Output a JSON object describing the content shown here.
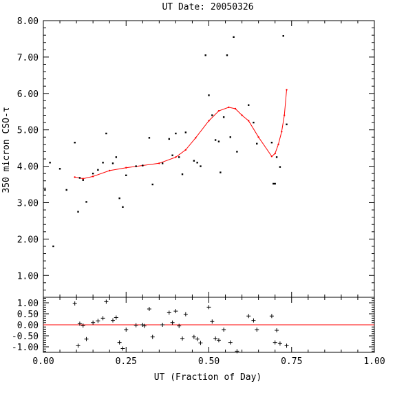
{
  "chart_data": {
    "type": "scatter",
    "title": "UT Date: 20050326",
    "xlabel": "UT (Fraction of Day)",
    "ylabel": "350 micron CSO-τ",
    "xlim": [
      0.0,
      1.0
    ],
    "ylim": [
      0.4,
      8.0
    ],
    "residual_ylim": [
      -1.25,
      1.25
    ],
    "x_ticks": [
      "0.00",
      "0.25",
      "0.50",
      "0.75",
      "1.00"
    ],
    "y_ticks": [
      "1.00",
      "2.00",
      "3.00",
      "4.00",
      "5.00",
      "6.00",
      "7.00",
      "8.00"
    ],
    "residual_y_ticks": [
      "1.00",
      "0.50",
      "0.00",
      "-0.50",
      "-1.00"
    ],
    "grid": false,
    "fit_color": "#ff0000",
    "point_color": "#000000",
    "points": [
      {
        "x": 0.005,
        "y": 3.35
      },
      {
        "x": 0.02,
        "y": 4.1
      },
      {
        "x": 0.03,
        "y": 1.8
      },
      {
        "x": 0.05,
        "y": 3.93
      },
      {
        "x": 0.07,
        "y": 3.35
      },
      {
        "x": 0.095,
        "y": 4.65
      },
      {
        "x": 0.105,
        "y": 2.75
      },
      {
        "x": 0.11,
        "y": 3.68
      },
      {
        "x": 0.12,
        "y": 3.62
      },
      {
        "x": 0.13,
        "y": 3.02
      },
      {
        "x": 0.15,
        "y": 3.8
      },
      {
        "x": 0.165,
        "y": 3.9
      },
      {
        "x": 0.18,
        "y": 4.1
      },
      {
        "x": 0.19,
        "y": 4.9
      },
      {
        "x": 0.21,
        "y": 4.08
      },
      {
        "x": 0.22,
        "y": 4.25
      },
      {
        "x": 0.23,
        "y": 3.12
      },
      {
        "x": 0.24,
        "y": 2.88
      },
      {
        "x": 0.25,
        "y": 3.75
      },
      {
        "x": 0.28,
        "y": 4.0
      },
      {
        "x": 0.3,
        "y": 4.02
      },
      {
        "x": 0.32,
        "y": 4.78
      },
      {
        "x": 0.33,
        "y": 3.5
      },
      {
        "x": 0.36,
        "y": 4.08
      },
      {
        "x": 0.38,
        "y": 4.75
      },
      {
        "x": 0.39,
        "y": 4.3
      },
      {
        "x": 0.4,
        "y": 4.9
      },
      {
        "x": 0.41,
        "y": 4.25
      },
      {
        "x": 0.42,
        "y": 3.78
      },
      {
        "x": 0.43,
        "y": 4.93
      },
      {
        "x": 0.455,
        "y": 4.15
      },
      {
        "x": 0.465,
        "y": 4.1
      },
      {
        "x": 0.475,
        "y": 4.0
      },
      {
        "x": 0.49,
        "y": 7.05
      },
      {
        "x": 0.5,
        "y": 5.95
      },
      {
        "x": 0.51,
        "y": 5.4
      },
      {
        "x": 0.52,
        "y": 4.72
      },
      {
        "x": 0.53,
        "y": 4.68
      },
      {
        "x": 0.535,
        "y": 3.83
      },
      {
        "x": 0.545,
        "y": 5.35
      },
      {
        "x": 0.555,
        "y": 7.05
      },
      {
        "x": 0.565,
        "y": 4.8
      },
      {
        "x": 0.575,
        "y": 7.55
      },
      {
        "x": 0.585,
        "y": 4.4
      },
      {
        "x": 0.62,
        "y": 5.68
      },
      {
        "x": 0.635,
        "y": 5.2
      },
      {
        "x": 0.645,
        "y": 4.62
      },
      {
        "x": 0.69,
        "y": 4.65
      },
      {
        "x": 0.695,
        "y": 3.52
      },
      {
        "x": 0.7,
        "y": 3.52
      },
      {
        "x": 0.705,
        "y": 4.25
      },
      {
        "x": 0.715,
        "y": 3.98
      },
      {
        "x": 0.725,
        "y": 7.58
      },
      {
        "x": 0.735,
        "y": 5.15
      }
    ],
    "fit": [
      {
        "x": 0.095,
        "y": 3.7
      },
      {
        "x": 0.12,
        "y": 3.66
      },
      {
        "x": 0.15,
        "y": 3.72
      },
      {
        "x": 0.2,
        "y": 3.88
      },
      {
        "x": 0.25,
        "y": 3.96
      },
      {
        "x": 0.3,
        "y": 4.02
      },
      {
        "x": 0.35,
        "y": 4.08
      },
      {
        "x": 0.4,
        "y": 4.25
      },
      {
        "x": 0.43,
        "y": 4.45
      },
      {
        "x": 0.46,
        "y": 4.78
      },
      {
        "x": 0.5,
        "y": 5.25
      },
      {
        "x": 0.53,
        "y": 5.52
      },
      {
        "x": 0.56,
        "y": 5.62
      },
      {
        "x": 0.58,
        "y": 5.58
      },
      {
        "x": 0.6,
        "y": 5.4
      },
      {
        "x": 0.62,
        "y": 5.25
      },
      {
        "x": 0.65,
        "y": 4.8
      },
      {
        "x": 0.69,
        "y": 4.27
      },
      {
        "x": 0.7,
        "y": 4.35
      },
      {
        "x": 0.71,
        "y": 4.6
      },
      {
        "x": 0.72,
        "y": 4.95
      },
      {
        "x": 0.728,
        "y": 5.4
      },
      {
        "x": 0.735,
        "y": 6.1
      }
    ],
    "residuals": [
      {
        "x": 0.095,
        "y": 0.97
      },
      {
        "x": 0.105,
        "y": -0.95
      },
      {
        "x": 0.11,
        "y": 0.05
      },
      {
        "x": 0.12,
        "y": -0.03
      },
      {
        "x": 0.13,
        "y": -0.65
      },
      {
        "x": 0.15,
        "y": 0.1
      },
      {
        "x": 0.165,
        "y": 0.18
      },
      {
        "x": 0.18,
        "y": 0.3
      },
      {
        "x": 0.19,
        "y": 1.05
      },
      {
        "x": 0.21,
        "y": 0.2
      },
      {
        "x": 0.22,
        "y": 0.33
      },
      {
        "x": 0.23,
        "y": -0.8
      },
      {
        "x": 0.24,
        "y": -1.08
      },
      {
        "x": 0.25,
        "y": -0.22
      },
      {
        "x": 0.28,
        "y": -0.02
      },
      {
        "x": 0.3,
        "y": 0.0
      },
      {
        "x": 0.305,
        "y": -0.05
      },
      {
        "x": 0.32,
        "y": 0.72
      },
      {
        "x": 0.33,
        "y": -0.55
      },
      {
        "x": 0.36,
        "y": 0.0
      },
      {
        "x": 0.38,
        "y": 0.55
      },
      {
        "x": 0.39,
        "y": 0.1
      },
      {
        "x": 0.4,
        "y": 0.62
      },
      {
        "x": 0.41,
        "y": -0.05
      },
      {
        "x": 0.42,
        "y": -0.62
      },
      {
        "x": 0.43,
        "y": 0.48
      },
      {
        "x": 0.455,
        "y": -0.55
      },
      {
        "x": 0.465,
        "y": -0.65
      },
      {
        "x": 0.475,
        "y": -0.82
      },
      {
        "x": 0.5,
        "y": 0.8
      },
      {
        "x": 0.51,
        "y": 0.15
      },
      {
        "x": 0.52,
        "y": -0.62
      },
      {
        "x": 0.53,
        "y": -0.7
      },
      {
        "x": 0.545,
        "y": -0.22
      },
      {
        "x": 0.565,
        "y": -0.8
      },
      {
        "x": 0.585,
        "y": -1.2
      },
      {
        "x": 0.62,
        "y": 0.4
      },
      {
        "x": 0.635,
        "y": 0.2
      },
      {
        "x": 0.645,
        "y": -0.22
      },
      {
        "x": 0.69,
        "y": 0.4
      },
      {
        "x": 0.7,
        "y": -0.8
      },
      {
        "x": 0.705,
        "y": -0.25
      },
      {
        "x": 0.715,
        "y": -0.85
      },
      {
        "x": 0.735,
        "y": -0.95
      }
    ]
  }
}
